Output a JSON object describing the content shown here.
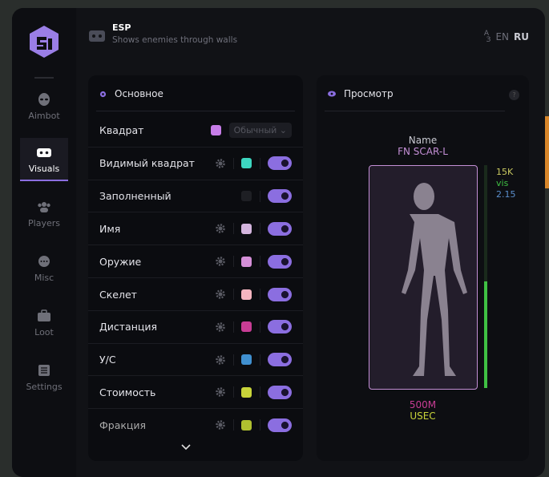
{
  "header": {
    "title": "ESP",
    "subtitle": "Shows enemies through walls",
    "lang_en": "EN",
    "lang_ru": "RU"
  },
  "sidebar": {
    "items": [
      {
        "label": "Aimbot",
        "icon": "alien-icon"
      },
      {
        "label": "Visuals",
        "icon": "vr-goggles-icon",
        "active": true
      },
      {
        "label": "Players",
        "icon": "users-icon"
      },
      {
        "label": "Misc",
        "icon": "chat-dots-icon"
      },
      {
        "label": "Loot",
        "icon": "briefcase-icon"
      },
      {
        "label": "Settings",
        "icon": "list-icon"
      }
    ]
  },
  "main": {
    "title": "Основное",
    "rows": [
      {
        "label": "Квадрат",
        "color": "#c77de8",
        "select": "Обычный"
      },
      {
        "label": "Видимый квадрат",
        "color": "#3dd6c0",
        "enabled": true
      },
      {
        "label": "Заполненный",
        "color": "#1e1f24",
        "enabled": true
      },
      {
        "label": "Имя",
        "color": "#d4b5de",
        "enabled": true
      },
      {
        "label": "Оружие",
        "color": "#d58fd8",
        "enabled": true
      },
      {
        "label": "Скелет",
        "color": "#f5b5c0",
        "enabled": true
      },
      {
        "label": "Дистанция",
        "color": "#c83d95",
        "enabled": true
      },
      {
        "label": "У/С",
        "color": "#4090d0",
        "enabled": true
      },
      {
        "label": "Стоимость",
        "color": "#c8d43a",
        "enabled": true
      },
      {
        "label": "Фракция",
        "color": "#b0c030",
        "enabled": true
      }
    ]
  },
  "preview": {
    "title": "Просмотр",
    "help": "?",
    "name": "Name",
    "weapon": "FN SCAR-L",
    "value": "15K",
    "visible": "vis",
    "kd": "2.15",
    "distance": "500M",
    "faction": "USEC",
    "health_fraction": 0.48
  },
  "colors": {
    "accent": "#8b6ee0"
  }
}
